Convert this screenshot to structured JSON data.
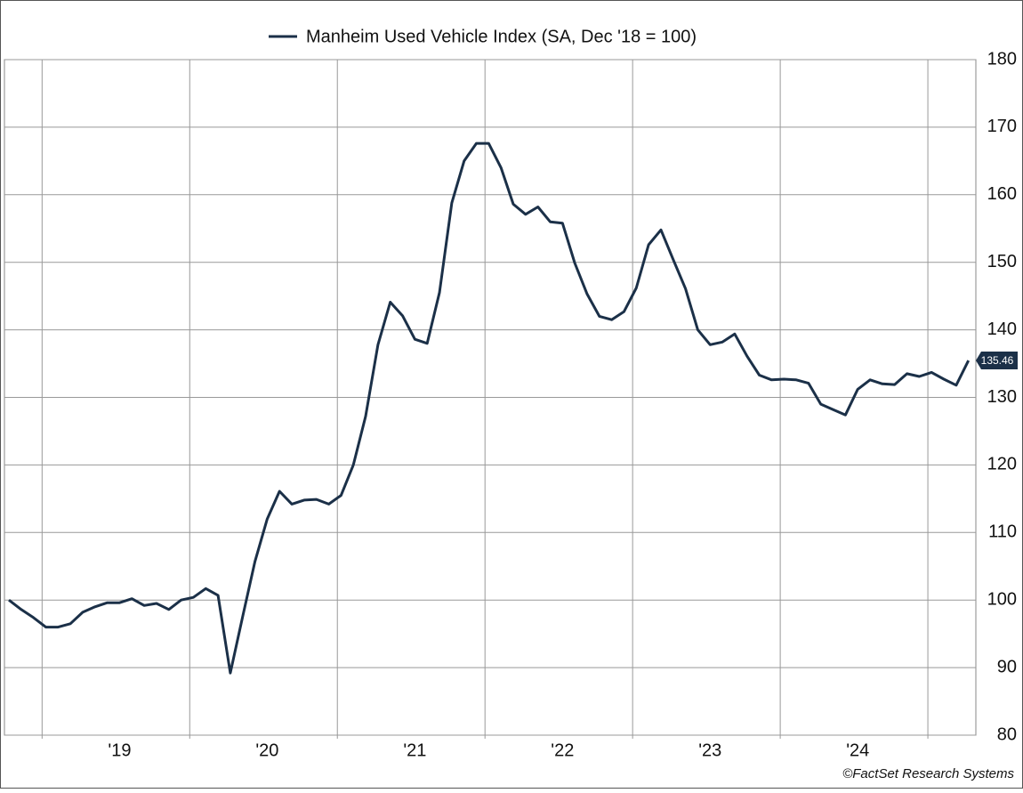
{
  "chart_data": {
    "type": "line",
    "categories": [
      null,
      null,
      null,
      null,
      null,
      null,
      null,
      null,
      null,
      "'19",
      null,
      null,
      null,
      null,
      null,
      null,
      null,
      null,
      null,
      null,
      null,
      "'20",
      null,
      null,
      null,
      null,
      null,
      null,
      null,
      null,
      null,
      null,
      null,
      "'21",
      null,
      null,
      null,
      null,
      null,
      null,
      null,
      null,
      null,
      null,
      null,
      "'22",
      null,
      null,
      null,
      null,
      null,
      null,
      null,
      null,
      null,
      null,
      null,
      "'23",
      null,
      null,
      null,
      null,
      null,
      null,
      null,
      null,
      null,
      null,
      null,
      "'24",
      null,
      null,
      null,
      null,
      null,
      null,
      null,
      null,
      null
    ],
    "series": [
      {
        "name": "Manheim Used Vehicle Index (SA, Dec '18 = 100)",
        "color": "#1b3048",
        "values": [
          100,
          98.6,
          97.4,
          96,
          96,
          96.5,
          98.2,
          99,
          99.6,
          99.6,
          100.2,
          99.2,
          99.5,
          98.6,
          100,
          100.4,
          101.7,
          100.7,
          89.2,
          97.5,
          105.7,
          112,
          116.1,
          114.2,
          114.8,
          114.9,
          114.2,
          115.5,
          120,
          127.2,
          137.8,
          144.1,
          142.1,
          138.6,
          138,
          145.5,
          158.8,
          165,
          167.6,
          167.6,
          164,
          158.6,
          157.1,
          158.2,
          156,
          155.8,
          149.9,
          145.3,
          142,
          141.5,
          142.7,
          146.2,
          152.6,
          154.8,
          150.4,
          146.1,
          140,
          137.8,
          138.2,
          139.4,
          136.1,
          133.3,
          132.6,
          132.7,
          132.6,
          132.1,
          129,
          128.2,
          127.4,
          131.2,
          132.6,
          132,
          131.9,
          133.5,
          133.1,
          133.7,
          132.7,
          131.8,
          135.46
        ]
      }
    ],
    "ylim": [
      80,
      180
    ],
    "yticks": [
      80,
      90,
      100,
      110,
      120,
      130,
      140,
      150,
      160,
      170,
      180
    ],
    "grid": true,
    "source": "©FactSet Research Systems"
  }
}
